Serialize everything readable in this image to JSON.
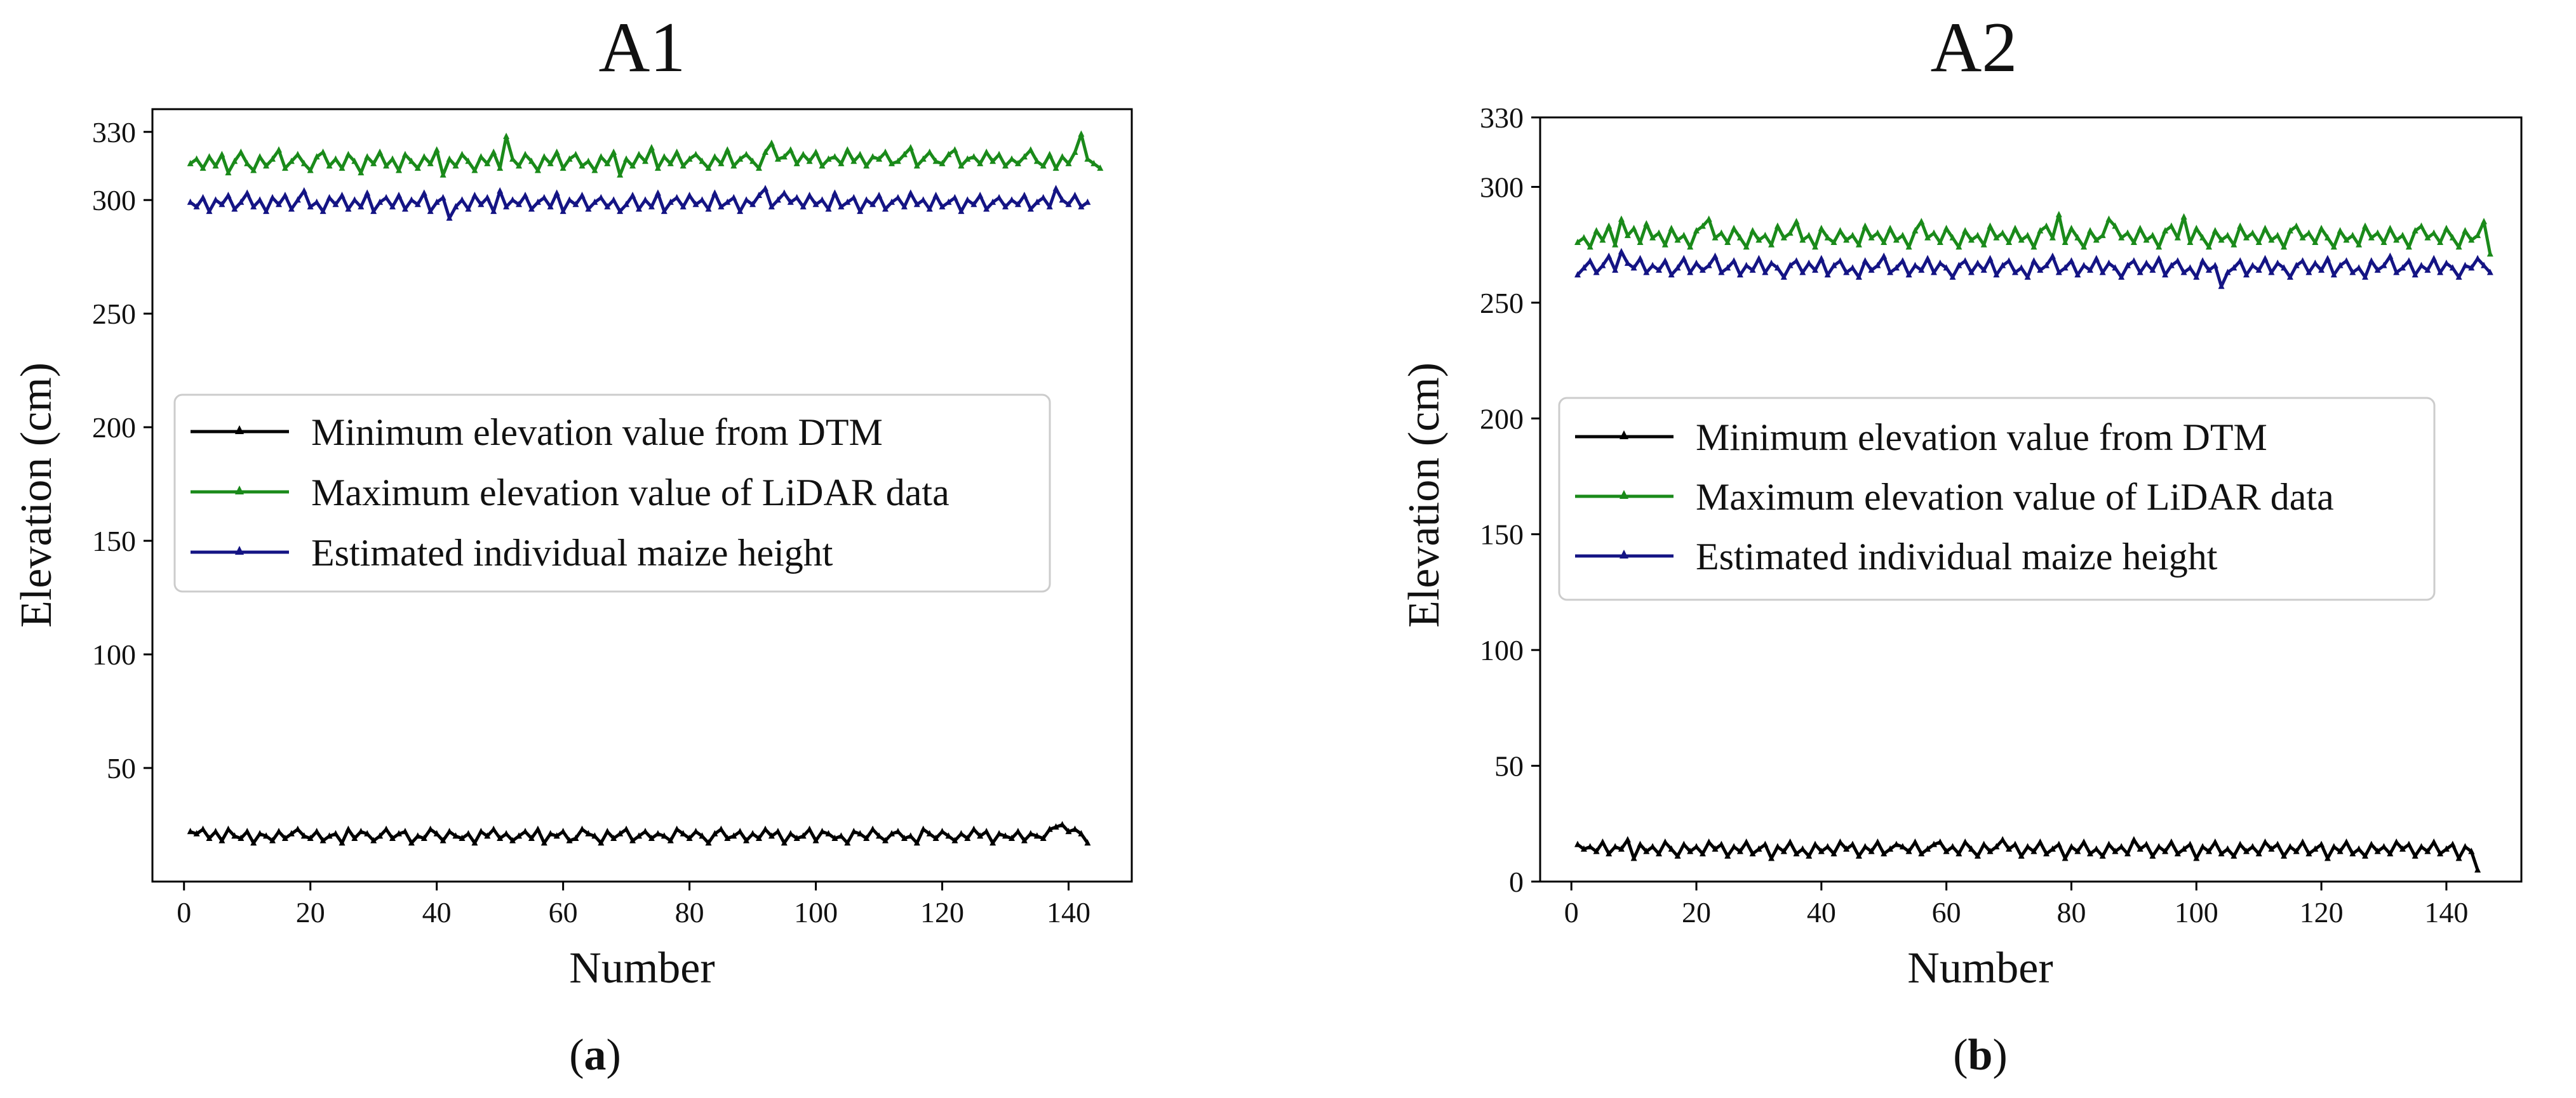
{
  "chart_data": [
    {
      "id": "a",
      "type": "line",
      "title": "A1",
      "subfigure_label": "a",
      "xlabel": "Number",
      "ylabel": "Elevation (cm)",
      "xlim": [
        -5,
        150
      ],
      "ylim": [
        0,
        340
      ],
      "xticks": [
        0,
        20,
        40,
        60,
        80,
        100,
        120,
        140
      ],
      "yticks": [
        50,
        100,
        150,
        200,
        250,
        300,
        330
      ],
      "legend_position": "center-left",
      "series": [
        {
          "name": "Minimum elevation value from DTM",
          "color": "#000000",
          "marker": "triangle-up",
          "values": [
            22,
            21,
            23,
            19,
            22,
            18,
            23,
            20,
            19,
            22,
            17,
            21,
            20,
            18,
            22,
            19,
            21,
            23,
            20,
            19,
            22,
            18,
            20,
            21,
            17,
            23,
            19,
            22,
            21,
            18,
            20,
            23,
            19,
            21,
            22,
            17,
            20,
            19,
            23,
            21,
            18,
            22,
            20,
            19,
            21,
            17,
            22,
            20,
            23,
            19,
            21,
            18,
            20,
            22,
            19,
            23,
            17,
            21,
            20,
            22,
            18,
            19,
            23,
            21,
            20,
            17,
            22,
            19,
            21,
            23,
            18,
            20,
            22,
            19,
            21,
            20,
            18,
            23,
            21,
            19,
            22,
            20,
            17,
            21,
            23,
            19,
            20,
            22,
            18,
            21,
            19,
            23,
            20,
            22,
            17,
            21,
            19,
            20,
            23,
            18,
            22,
            21,
            19,
            20,
            17,
            22,
            21,
            19,
            23,
            20,
            18,
            21,
            22,
            19,
            20,
            17,
            23,
            21,
            19,
            22,
            20,
            18,
            21,
            19,
            23,
            20,
            22,
            17,
            21,
            20,
            19,
            22,
            18,
            21,
            20,
            19,
            23,
            24,
            25,
            22,
            23,
            21,
            17
          ]
        },
        {
          "name": "Maximum elevation value of LiDAR data",
          "color": "#1a8a1a",
          "marker": "triangle-up",
          "values": [
            316,
            318,
            314,
            319,
            315,
            320,
            312,
            317,
            321,
            316,
            313,
            319,
            315,
            318,
            322,
            314,
            317,
            320,
            316,
            313,
            319,
            321,
            315,
            318,
            314,
            320,
            317,
            312,
            319,
            316,
            321,
            315,
            318,
            313,
            320,
            317,
            314,
            319,
            316,
            322,
            311,
            318,
            315,
            320,
            317,
            313,
            319,
            316,
            321,
            314,
            328,
            318,
            315,
            320,
            317,
            313,
            319,
            316,
            321,
            314,
            318,
            320,
            315,
            317,
            313,
            319,
            316,
            321,
            311,
            318,
            315,
            320,
            317,
            323,
            314,
            319,
            316,
            321,
            315,
            318,
            320,
            317,
            314,
            319,
            316,
            322,
            315,
            318,
            320,
            317,
            314,
            321,
            325,
            318,
            319,
            322,
            316,
            320,
            317,
            321,
            315,
            318,
            319,
            316,
            322,
            317,
            320,
            315,
            319,
            318,
            321,
            316,
            317,
            320,
            323,
            315,
            318,
            321,
            317,
            316,
            320,
            322,
            315,
            318,
            319,
            316,
            321,
            317,
            320,
            315,
            318,
            316,
            319,
            322,
            317,
            315,
            320,
            314,
            319,
            316,
            321,
            329,
            318,
            316,
            314
          ]
        },
        {
          "name": "Estimated individual maize height",
          "color": "#141484",
          "marker": "triangle-up",
          "values": [
            299,
            297,
            301,
            295,
            300,
            298,
            302,
            296,
            299,
            303,
            297,
            300,
            295,
            301,
            298,
            302,
            296,
            300,
            304,
            297,
            299,
            295,
            301,
            298,
            302,
            296,
            300,
            297,
            303,
            295,
            299,
            301,
            297,
            302,
            296,
            300,
            298,
            303,
            295,
            299,
            301,
            292,
            297,
            300,
            296,
            302,
            298,
            301,
            295,
            304,
            297,
            300,
            298,
            302,
            296,
            299,
            301,
            297,
            303,
            295,
            300,
            298,
            302,
            296,
            299,
            301,
            297,
            300,
            295,
            298,
            302,
            296,
            300,
            297,
            303,
            295,
            299,
            301,
            297,
            302,
            298,
            300,
            296,
            303,
            297,
            299,
            301,
            295,
            300,
            298,
            302,
            305,
            297,
            300,
            303,
            299,
            301,
            297,
            302,
            298,
            300,
            296,
            303,
            297,
            299,
            301,
            295,
            300,
            298,
            302,
            296,
            299,
            301,
            297,
            303,
            298,
            300,
            296,
            302,
            297,
            299,
            301,
            295,
            300,
            298,
            302,
            296,
            299,
            301,
            297,
            300,
            298,
            302,
            296,
            299,
            301,
            297,
            305,
            300,
            298,
            302,
            297,
            299
          ]
        }
      ]
    },
    {
      "id": "b",
      "type": "line",
      "title": "A2",
      "subfigure_label": "b",
      "xlabel": "Number",
      "ylabel": "Elevation (cm)",
      "xlim": [
        -5,
        152
      ],
      "ylim": [
        0,
        330
      ],
      "xticks": [
        0,
        20,
        40,
        60,
        80,
        100,
        120,
        140
      ],
      "yticks": [
        0,
        50,
        100,
        150,
        200,
        250,
        300,
        330
      ],
      "legend_position": "center-left",
      "series": [
        {
          "name": "Minimum elevation value from DTM",
          "color": "#000000",
          "marker": "triangle-up",
          "values": [
            16,
            14,
            15,
            13,
            17,
            12,
            15,
            14,
            18,
            10,
            16,
            13,
            15,
            12,
            17,
            14,
            11,
            16,
            13,
            15,
            12,
            17,
            14,
            16,
            11,
            15,
            13,
            17,
            12,
            14,
            16,
            10,
            15,
            13,
            17,
            12,
            14,
            11,
            16,
            13,
            15,
            12,
            17,
            14,
            16,
            11,
            15,
            13,
            17,
            12,
            14,
            16,
            15,
            13,
            17,
            12,
            14,
            16,
            17,
            13,
            15,
            12,
            17,
            14,
            11,
            16,
            13,
            15,
            18,
            14,
            16,
            11,
            15,
            13,
            17,
            12,
            14,
            16,
            10,
            15,
            13,
            17,
            12,
            14,
            11,
            16,
            13,
            15,
            12,
            18,
            14,
            16,
            11,
            15,
            13,
            17,
            12,
            14,
            16,
            10,
            15,
            13,
            17,
            12,
            14,
            11,
            16,
            13,
            15,
            12,
            17,
            14,
            16,
            11,
            15,
            13,
            17,
            12,
            14,
            16,
            10,
            15,
            13,
            17,
            12,
            14,
            11,
            16,
            13,
            15,
            12,
            17,
            14,
            16,
            11,
            15,
            13,
            17,
            12,
            14,
            16,
            10,
            15,
            13,
            5
          ]
        },
        {
          "name": "Maximum elevation value of LiDAR data",
          "color": "#1a8a1a",
          "marker": "triangle-up",
          "values": [
            276,
            278,
            274,
            281,
            277,
            283,
            275,
            286,
            279,
            282,
            276,
            284,
            278,
            280,
            275,
            282,
            277,
            279,
            274,
            281,
            283,
            286,
            278,
            280,
            276,
            282,
            278,
            274,
            281,
            277,
            279,
            275,
            283,
            278,
            280,
            285,
            277,
            279,
            274,
            282,
            278,
            276,
            281,
            277,
            279,
            275,
            283,
            278,
            280,
            276,
            282,
            277,
            279,
            274,
            281,
            285,
            278,
            280,
            276,
            282,
            278,
            274,
            281,
            277,
            279,
            275,
            283,
            278,
            280,
            276,
            282,
            277,
            279,
            274,
            281,
            283,
            278,
            288,
            276,
            282,
            278,
            274,
            281,
            277,
            279,
            286,
            283,
            278,
            280,
            276,
            282,
            277,
            279,
            274,
            281,
            283,
            278,
            287,
            276,
            282,
            278,
            274,
            281,
            277,
            279,
            275,
            283,
            278,
            280,
            276,
            282,
            277,
            279,
            274,
            281,
            283,
            278,
            280,
            276,
            282,
            278,
            274,
            281,
            277,
            279,
            275,
            283,
            278,
            280,
            276,
            282,
            277,
            279,
            274,
            281,
            283,
            278,
            280,
            276,
            282,
            278,
            274,
            281,
            277,
            279,
            285,
            271
          ]
        },
        {
          "name": "Estimated individual maize height",
          "color": "#141484",
          "marker": "triangle-up",
          "values": [
            262,
            265,
            268,
            263,
            266,
            270,
            264,
            272,
            267,
            265,
            269,
            263,
            266,
            264,
            268,
            262,
            265,
            269,
            263,
            267,
            264,
            266,
            270,
            263,
            265,
            268,
            262,
            266,
            264,
            269,
            263,
            267,
            265,
            261,
            266,
            268,
            263,
            267,
            264,
            269,
            262,
            266,
            268,
            263,
            265,
            261,
            268,
            264,
            266,
            270,
            263,
            265,
            268,
            262,
            266,
            264,
            269,
            263,
            267,
            265,
            261,
            266,
            268,
            263,
            267,
            264,
            269,
            262,
            266,
            268,
            263,
            265,
            261,
            268,
            264,
            266,
            270,
            263,
            265,
            268,
            262,
            266,
            264,
            269,
            263,
            267,
            265,
            261,
            266,
            268,
            263,
            267,
            264,
            269,
            262,
            266,
            268,
            263,
            265,
            261,
            268,
            264,
            266,
            257,
            263,
            265,
            268,
            262,
            266,
            264,
            269,
            263,
            267,
            265,
            261,
            266,
            268,
            263,
            267,
            264,
            269,
            262,
            266,
            268,
            263,
            265,
            261,
            268,
            264,
            266,
            270,
            263,
            265,
            268,
            262,
            266,
            264,
            269,
            263,
            267,
            265,
            261,
            266,
            265,
            269,
            266,
            263
          ]
        }
      ]
    }
  ]
}
